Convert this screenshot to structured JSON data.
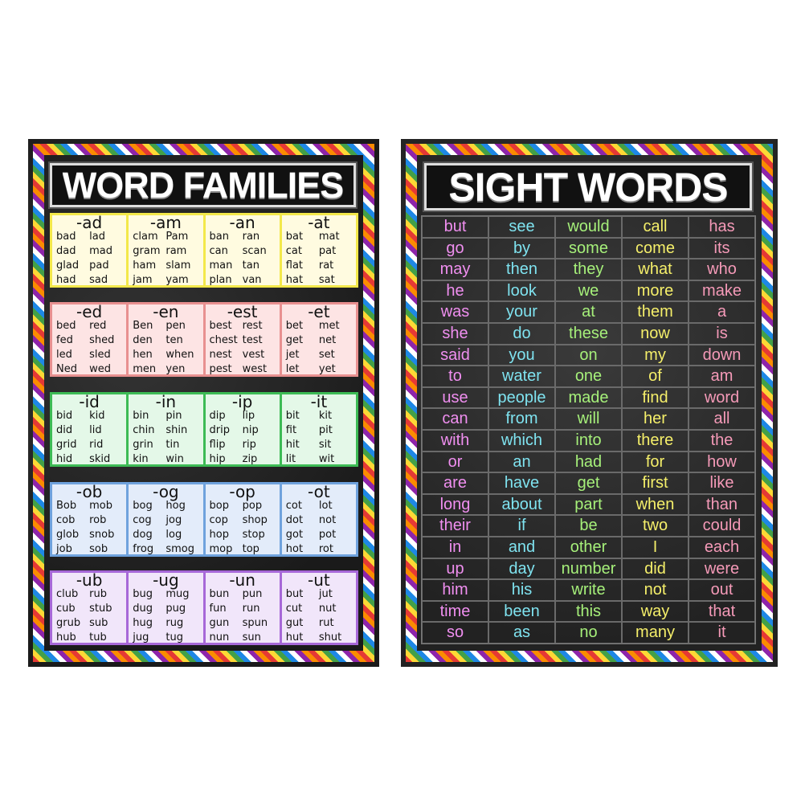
{
  "word_families": {
    "title": "WORD FAMILIES",
    "rows": [
      {
        "bg": "#fffbe0",
        "border": "#f3e84a",
        "families": [
          {
            "ending": "-ad",
            "words": [
              "bad",
              "lad",
              "dad",
              "mad",
              "glad",
              "pad",
              "had",
              "sad"
            ]
          },
          {
            "ending": "-am",
            "words": [
              "clam",
              "Pam",
              "gram",
              "ram",
              "ham",
              "slam",
              "jam",
              "yam"
            ]
          },
          {
            "ending": "-an",
            "words": [
              "ban",
              "ran",
              "can",
              "scan",
              "man",
              "tan",
              "plan",
              "van"
            ]
          },
          {
            "ending": "-at",
            "words": [
              "bat",
              "mat",
              "cat",
              "pat",
              "flat",
              "rat",
              "hat",
              "sat"
            ]
          }
        ]
      },
      {
        "bg": "#fde4e4",
        "border": "#e89090",
        "families": [
          {
            "ending": "-ed",
            "words": [
              "bed",
              "red",
              "fed",
              "shed",
              "led",
              "sled",
              "Ned",
              "wed"
            ]
          },
          {
            "ending": "-en",
            "words": [
              "Ben",
              "pen",
              "den",
              "ten",
              "hen",
              "when",
              "men",
              "yen"
            ]
          },
          {
            "ending": "-est",
            "words": [
              "best",
              "rest",
              "chest",
              "test",
              "nest",
              "vest",
              "pest",
              "west"
            ]
          },
          {
            "ending": "-et",
            "words": [
              "bet",
              "met",
              "get",
              "net",
              "jet",
              "set",
              "let",
              "yet"
            ]
          }
        ]
      },
      {
        "bg": "#e4f8e8",
        "border": "#3dbb55",
        "families": [
          {
            "ending": "-id",
            "words": [
              "bid",
              "kid",
              "did",
              "lid",
              "grid",
              "rid",
              "hid",
              "skid"
            ]
          },
          {
            "ending": "-in",
            "words": [
              "bin",
              "pin",
              "chin",
              "shin",
              "grin",
              "tin",
              "kin",
              "win"
            ]
          },
          {
            "ending": "-ip",
            "words": [
              "dip",
              "lip",
              "drip",
              "nip",
              "flip",
              "rip",
              "hip",
              "zip"
            ]
          },
          {
            "ending": "-it",
            "words": [
              "bit",
              "kit",
              "fit",
              "pit",
              "hit",
              "sit",
              "lit",
              "wit"
            ]
          }
        ]
      },
      {
        "bg": "#e3ecfa",
        "border": "#6fa2dd",
        "families": [
          {
            "ending": "-ob",
            "words": [
              "Bob",
              "mob",
              "cob",
              "rob",
              "glob",
              "snob",
              "job",
              "sob"
            ]
          },
          {
            "ending": "-og",
            "words": [
              "bog",
              "hog",
              "cog",
              "jog",
              "dog",
              "log",
              "frog",
              "smog"
            ]
          },
          {
            "ending": "-op",
            "words": [
              "bop",
              "pop",
              "cop",
              "shop",
              "hop",
              "stop",
              "mop",
              "top"
            ]
          },
          {
            "ending": "-ot",
            "words": [
              "cot",
              "lot",
              "dot",
              "not",
              "got",
              "pot",
              "hot",
              "rot"
            ]
          }
        ]
      },
      {
        "bg": "#f1e6fa",
        "border": "#a768d8",
        "families": [
          {
            "ending": "-ub",
            "words": [
              "club",
              "rub",
              "cub",
              "stub",
              "grub",
              "sub",
              "hub",
              "tub"
            ]
          },
          {
            "ending": "-ug",
            "words": [
              "bug",
              "mug",
              "dug",
              "pug",
              "hug",
              "rug",
              "jug",
              "tug"
            ]
          },
          {
            "ending": "-un",
            "words": [
              "bun",
              "pun",
              "fun",
              "run",
              "gun",
              "spun",
              "nun",
              "sun"
            ]
          },
          {
            "ending": "-ut",
            "words": [
              "but",
              "jut",
              "cut",
              "nut",
              "gut",
              "rut",
              "hut",
              "shut"
            ]
          }
        ]
      }
    ]
  },
  "sight_words": {
    "title": "SIGHT WORDS",
    "column_colors": [
      "#f08ff0",
      "#7fe3f0",
      "#a6f07a",
      "#f5ef6a",
      "#f59ab8"
    ],
    "columns": [
      [
        "but",
        "go",
        "may",
        "he",
        "was",
        "she",
        "said",
        "to",
        "use",
        "can",
        "with",
        "or",
        "are",
        "long",
        "their",
        "in",
        "up",
        "him",
        "time",
        "so"
      ],
      [
        "see",
        "by",
        "then",
        "look",
        "your",
        "do",
        "you",
        "water",
        "people",
        "from",
        "which",
        "an",
        "have",
        "about",
        "if",
        "and",
        "day",
        "his",
        "been",
        "as"
      ],
      [
        "would",
        "some",
        "they",
        "we",
        "at",
        "these",
        "on",
        "one",
        "made",
        "will",
        "into",
        "had",
        "get",
        "part",
        "be",
        "other",
        "number",
        "write",
        "this",
        "no"
      ],
      [
        "call",
        "come",
        "what",
        "more",
        "them",
        "now",
        "my",
        "of",
        "find",
        "her",
        "there",
        "for",
        "first",
        "when",
        "two",
        "I",
        "did",
        "not",
        "way",
        "many"
      ],
      [
        "has",
        "its",
        "who",
        "make",
        "a",
        "is",
        "down",
        "am",
        "word",
        "all",
        "the",
        "how",
        "like",
        "than",
        "could",
        "each",
        "were",
        "out",
        "that",
        "it"
      ]
    ]
  }
}
